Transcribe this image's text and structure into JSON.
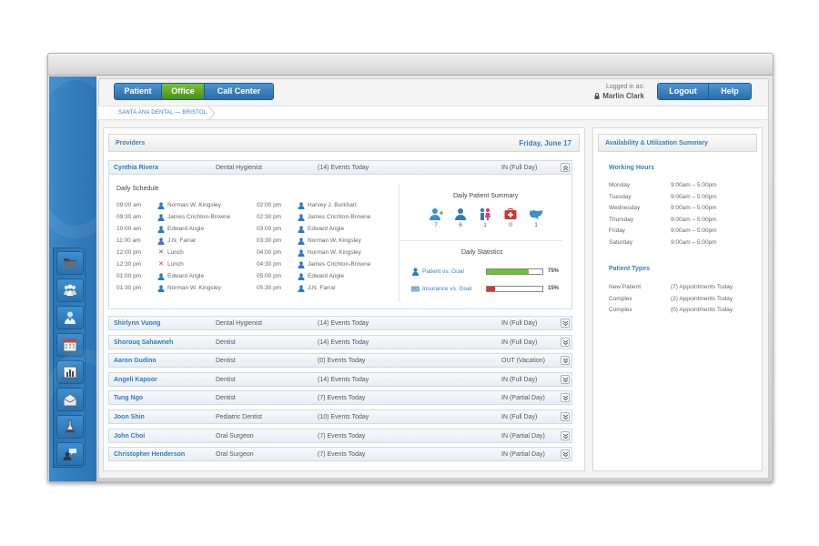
{
  "tabs": [
    {
      "label": "Patient",
      "active": false
    },
    {
      "label": "Office",
      "active": true
    },
    {
      "label": "Call Center",
      "active": false
    }
  ],
  "login": {
    "label": "Logged in as:",
    "user": "Marlin Clark"
  },
  "buttons": {
    "logout": "Logout",
    "help": "Help"
  },
  "breadcrumb": "SANTA ANA DENTAL — BRISTOL",
  "providers_panel": {
    "title": "Providers",
    "date": "Friday, June 17",
    "expanded": {
      "name": "Cynthia Rivera",
      "role": "Dental Hygienist",
      "events": "(14)  Events Today",
      "status": "IN  (Full Day)",
      "schedule_title": "Daily Schedule",
      "schedule_left": [
        {
          "time": "09:00 am",
          "who": "Norman W. Kingsley",
          "icon": "person-icon"
        },
        {
          "time": "09:30 am",
          "who": "James Crichton-Browne",
          "icon": "person-icon"
        },
        {
          "time": "10:00 am",
          "who": "Edward Angle",
          "icon": "person-icon"
        },
        {
          "time": "11:00 am",
          "who": "J.N. Farrar",
          "icon": "person-icon"
        },
        {
          "time": "12:00 pm",
          "who": "Lunch",
          "icon": "x-icon"
        },
        {
          "time": "12:30 pm",
          "who": "Lunch",
          "icon": "x-icon"
        },
        {
          "time": "01:00 pm",
          "who": "Edward Angle",
          "icon": "person-icon"
        },
        {
          "time": "01:30 pm",
          "who": "Norman W. Kingsley",
          "icon": "person-icon"
        }
      ],
      "schedule_right": [
        {
          "time": "02:00 pm",
          "who": "Harvey J. Burkhart",
          "icon": "person-icon"
        },
        {
          "time": "02:30 pm",
          "who": "James Crichton-Browne",
          "icon": "person-icon"
        },
        {
          "time": "03:00 pm",
          "who": "Edward Angle",
          "icon": "person-icon"
        },
        {
          "time": "03:30 pm",
          "who": "Norman W. Kingsley",
          "icon": "person-icon"
        },
        {
          "time": "04:00 pm",
          "who": "Norman W. Kingsley",
          "icon": "person-icon"
        },
        {
          "time": "04:30 pm",
          "who": "James Crichton-Browne",
          "icon": "person-icon"
        },
        {
          "time": "05:00 pm",
          "who": "Edward Angle",
          "icon": "person-icon"
        },
        {
          "time": "05:30 pm",
          "who": "J.N. Farrar",
          "icon": "person-icon"
        }
      ],
      "patient_summary_title": "Daily Patient Summary",
      "patient_summary": [
        {
          "icon": "new-patient-icon",
          "count": "7"
        },
        {
          "icon": "patient-icon",
          "count": "6"
        },
        {
          "icon": "family-icon",
          "count": "1"
        },
        {
          "icon": "first-aid-icon",
          "count": "0"
        },
        {
          "icon": "usa-map-icon",
          "count": "1"
        }
      ],
      "stats_title": "Daily Statistics",
      "stats": [
        {
          "label": "Patient  vs. Goal",
          "percent": "75%",
          "value": 0.75,
          "color": "#6cc23a"
        },
        {
          "label": "Insurance  vs. Goal",
          "percent": "15%",
          "value": 0.15,
          "color": "#d93333"
        }
      ]
    },
    "providers": [
      {
        "name": "Shirlynn Vuong",
        "role": "Dental Hygienist",
        "events": "(14)  Events Today",
        "status": "IN  (Full Day)"
      },
      {
        "name": "Shorouq Sahawneh",
        "role": "Dentist",
        "events": "(14)  Events Today",
        "status": "IN  (Full Day)"
      },
      {
        "name": "Aaron Gudino",
        "role": "Dentist",
        "events": "(0)  Events Today",
        "status": "OUT  (Vacation)"
      },
      {
        "name": "Angeli Kapoor",
        "role": "Dentist",
        "events": "(14)  Events Today",
        "status": "IN  (Full Day)"
      },
      {
        "name": "Tung Ngo",
        "role": "Dentist",
        "events": "(7)  Events Today",
        "status": "IN  (Partial Day)"
      },
      {
        "name": "Joon Shin",
        "role": "Pediatric Dentist",
        "events": "(10)  Events Today",
        "status": "IN  (Full Day)"
      },
      {
        "name": "John Choi",
        "role": "Oral Surgeon",
        "events": "(7)  Events Today",
        "status": "IN  (Partial Day)"
      },
      {
        "name": "Christopher Henderson",
        "role": "Oral Surgeon",
        "events": "(7)  Events Today",
        "status": "IN  (Partial Day)"
      }
    ]
  },
  "side_panel": {
    "title": "Availability & Utilization Summary",
    "working_hours_title": "Working Hours",
    "working_hours": [
      {
        "day": "Monday",
        "hours": "9:00am – 5:00pm"
      },
      {
        "day": "Tuesday",
        "hours": "9:00am – 5:00pm"
      },
      {
        "day": "Wednesday",
        "hours": "9:00am – 5:00pm"
      },
      {
        "day": "Thursday",
        "hours": "9:00am – 5:00pm"
      },
      {
        "day": "Friday",
        "hours": "9:00am – 5:00pm"
      },
      {
        "day": "Saturday",
        "hours": "9:00am – 5:00pm"
      }
    ],
    "patient_types_title": "Patient Types",
    "patient_types": [
      {
        "type": "New Patient",
        "value": "(7)  Appointments Today"
      },
      {
        "type": "Complex",
        "value": "(2)  Appointments Today"
      },
      {
        "type": "Complex",
        "value": "(0)  Appointments Today"
      }
    ]
  },
  "nav": [
    "folder-icon",
    "group-icon",
    "doctor-icon",
    "calendar-icon",
    "chart-icon",
    "mail-icon",
    "lab-flask-icon",
    "support-chat-icon"
  ],
  "colors": {
    "accent": "#3a7ebf",
    "active_tab": "#5ea323",
    "sidebar": "#2f7bbd"
  }
}
